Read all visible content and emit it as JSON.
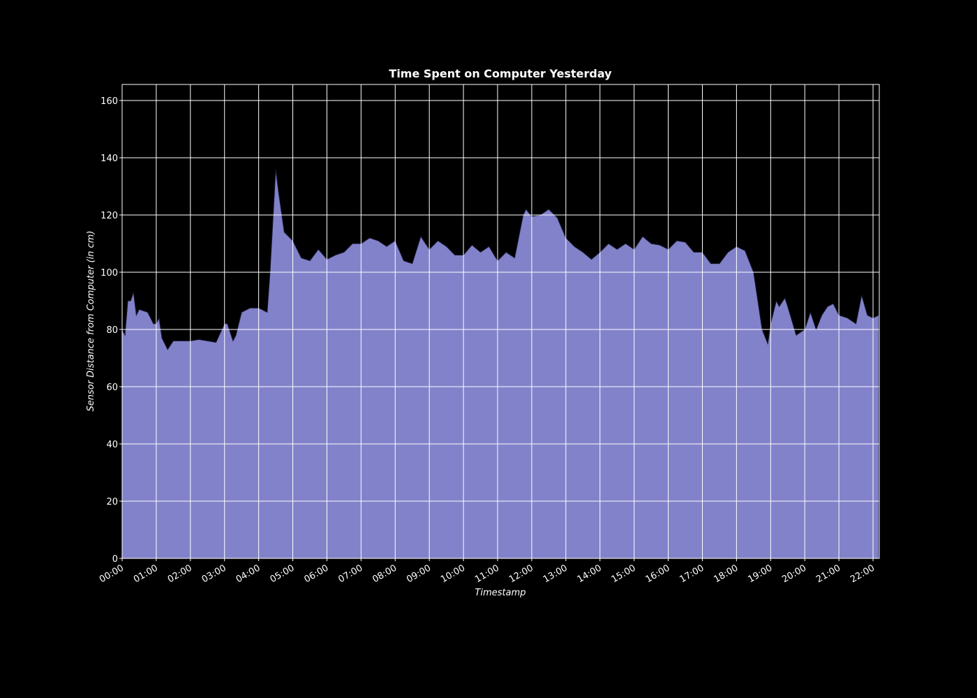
{
  "chart_data": {
    "type": "area",
    "title": "Time Spent on Computer Yesterday",
    "x_label": "Timestamp",
    "y_label": "Sensor Distance from Computer (in cm)",
    "color": "#8282cb",
    "grid": true,
    "x": [
      "00:00",
      "00:05",
      "00:10",
      "00:15",
      "00:20",
      "00:25",
      "00:30",
      "00:45",
      "00:55",
      "01:00",
      "01:05",
      "01:10",
      "01:20",
      "01:30",
      "01:45",
      "02:00",
      "02:15",
      "02:30",
      "02:45",
      "03:00",
      "03:05",
      "03:15",
      "03:20",
      "03:30",
      "03:45",
      "04:00",
      "04:15",
      "04:20",
      "04:30",
      "04:35",
      "04:45",
      "05:00",
      "05:15",
      "05:30",
      "05:45",
      "06:00",
      "06:15",
      "06:30",
      "06:45",
      "07:00",
      "07:15",
      "07:30",
      "07:45",
      "08:00",
      "08:15",
      "08:30",
      "08:45",
      "09:00",
      "09:15",
      "09:30",
      "09:45",
      "10:00",
      "10:15",
      "10:30",
      "10:45",
      "11:00",
      "11:15",
      "11:30",
      "11:45",
      "11:50",
      "12:00",
      "12:15",
      "12:30",
      "12:45",
      "13:00",
      "13:15",
      "13:30",
      "13:45",
      "14:00",
      "14:15",
      "14:30",
      "14:45",
      "15:00",
      "15:15",
      "15:30",
      "15:45",
      "16:00",
      "16:15",
      "16:30",
      "16:45",
      "17:00",
      "17:15",
      "17:30",
      "17:45",
      "18:00",
      "18:15",
      "18:30",
      "18:45",
      "18:55",
      "19:00",
      "19:10",
      "19:15",
      "19:25",
      "19:30",
      "19:45",
      "20:00",
      "20:10",
      "20:20",
      "20:30",
      "20:40",
      "20:50",
      "21:00",
      "21:15",
      "21:30",
      "21:40",
      "21:50",
      "22:00",
      "22:10"
    ],
    "values": [
      80,
      78,
      90,
      90,
      93,
      85,
      87,
      86,
      82,
      82,
      84,
      77,
      73,
      76,
      76,
      76,
      76.5,
      76,
      75.5,
      82,
      82,
      76,
      78,
      86,
      87.5,
      87.5,
      86,
      100,
      136,
      128,
      114,
      111,
      105,
      104,
      108,
      104.5,
      106,
      107,
      110,
      110,
      112,
      111,
      109,
      111,
      104,
      103,
      112.5,
      108,
      111,
      109,
      106,
      106,
      109.5,
      107,
      109,
      104,
      107,
      105,
      120,
      122,
      119.5,
      120,
      122,
      119,
      112,
      109,
      107,
      104.5,
      107,
      110,
      108,
      110,
      108,
      112.5,
      110,
      109.5,
      108,
      111,
      110.5,
      107,
      107,
      103,
      103,
      107,
      109,
      107.5,
      100,
      80,
      75,
      82,
      90,
      88,
      91,
      88,
      78,
      80,
      86,
      80,
      85,
      88,
      89,
      85,
      84,
      82,
      92,
      85,
      84,
      85
    ],
    "xlim": [
      "00:00",
      "22:11"
    ],
    "xticks": [
      "00:00",
      "01:00",
      "02:00",
      "03:00",
      "04:00",
      "05:00",
      "06:00",
      "07:00",
      "08:00",
      "09:00",
      "10:00",
      "11:00",
      "12:00",
      "13:00",
      "14:00",
      "15:00",
      "16:00",
      "17:00",
      "18:00",
      "19:00",
      "20:00",
      "21:00",
      "22:00"
    ],
    "ylim": [
      0,
      165.6
    ],
    "yticks": [
      0,
      20,
      40,
      60,
      80,
      100,
      120,
      140,
      160
    ]
  }
}
